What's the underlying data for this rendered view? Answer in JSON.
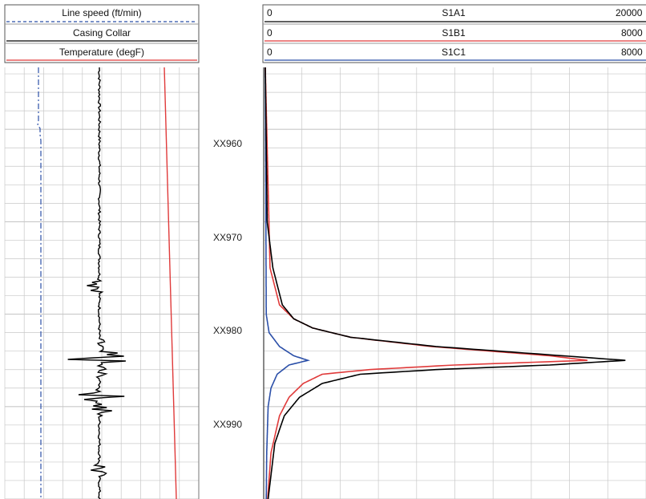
{
  "colors": {
    "line_speed": "#2b4fa8",
    "casing_collar": "#000000",
    "temperature": "#e03a3a",
    "S1A1": "#000000",
    "S1B1": "#e03a3a",
    "S1C1": "#2b4fa8",
    "grid": "#c8c8c8",
    "frame": "#555555"
  },
  "left_track": {
    "curves": [
      {
        "label": "Line speed (ft/min)",
        "style": "dashed",
        "color_key": "line_speed"
      },
      {
        "label": "Casing Collar",
        "style": "solid",
        "color_key": "casing_collar"
      },
      {
        "label": "Temperature (degF)",
        "style": "solid",
        "color_key": "temperature"
      }
    ]
  },
  "depth_track": {
    "labels": [
      "XX960",
      "XX970",
      "XX980",
      "XX990"
    ]
  },
  "right_track": {
    "curves": [
      {
        "name": "S1A1",
        "min": "0",
        "max": "20000",
        "color_key": "S1A1"
      },
      {
        "name": "S1B1",
        "min": "0",
        "max": "8000",
        "color_key": "S1B1"
      },
      {
        "name": "S1C1",
        "min": "0",
        "max": "8000",
        "color_key": "S1C1"
      }
    ]
  },
  "chart_data": {
    "type": "line",
    "depth_axis": {
      "ticks": [
        960,
        970,
        980,
        990
      ],
      "range": [
        953.3,
        1000
      ]
    },
    "grid": true,
    "series": [
      {
        "name": "S1A1",
        "scale": [
          0,
          20000
        ],
        "points": [
          [
            953.3,
            0
          ],
          [
            970,
            100
          ],
          [
            975,
            400
          ],
          [
            979,
            900
          ],
          [
            980.5,
            1500
          ],
          [
            981.5,
            2500
          ],
          [
            982.5,
            4500
          ],
          [
            983.5,
            9000
          ],
          [
            984.4,
            15000
          ],
          [
            985.0,
            19000
          ],
          [
            985.5,
            15000
          ],
          [
            986.0,
            9000
          ],
          [
            986.5,
            5000
          ],
          [
            987.5,
            3000
          ],
          [
            989,
            1800
          ],
          [
            991,
            1000
          ],
          [
            994,
            500
          ],
          [
            1000,
            150
          ]
        ]
      },
      {
        "name": "S1B1",
        "scale": [
          0,
          8000
        ],
        "points": [
          [
            953.3,
            0
          ],
          [
            975,
            100
          ],
          [
            979,
            300
          ],
          [
            980.5,
            600
          ],
          [
            981.5,
            1000
          ],
          [
            982.5,
            1800
          ],
          [
            983.5,
            3500
          ],
          [
            984.5,
            6000
          ],
          [
            985.0,
            6800
          ],
          [
            985.5,
            4000
          ],
          [
            986.0,
            2200
          ],
          [
            986.5,
            1200
          ],
          [
            987.5,
            800
          ],
          [
            989,
            500
          ],
          [
            991,
            300
          ],
          [
            995,
            120
          ],
          [
            1000,
            50
          ]
        ]
      },
      {
        "name": "S1C1",
        "scale": [
          0,
          8000
        ],
        "points": [
          [
            953.3,
            0
          ],
          [
            980,
            20
          ],
          [
            982,
            80
          ],
          [
            983.5,
            300
          ],
          [
            984.5,
            600
          ],
          [
            985.0,
            900
          ],
          [
            985.5,
            500
          ],
          [
            986.5,
            250
          ],
          [
            988,
            120
          ],
          [
            990,
            60
          ],
          [
            995,
            30
          ],
          [
            1000,
            20
          ]
        ]
      },
      {
        "name": "Temperature (degF)",
        "points": [
          [
            953.3,
            0.0
          ],
          [
            1000,
            1.0
          ]
        ]
      }
    ]
  }
}
